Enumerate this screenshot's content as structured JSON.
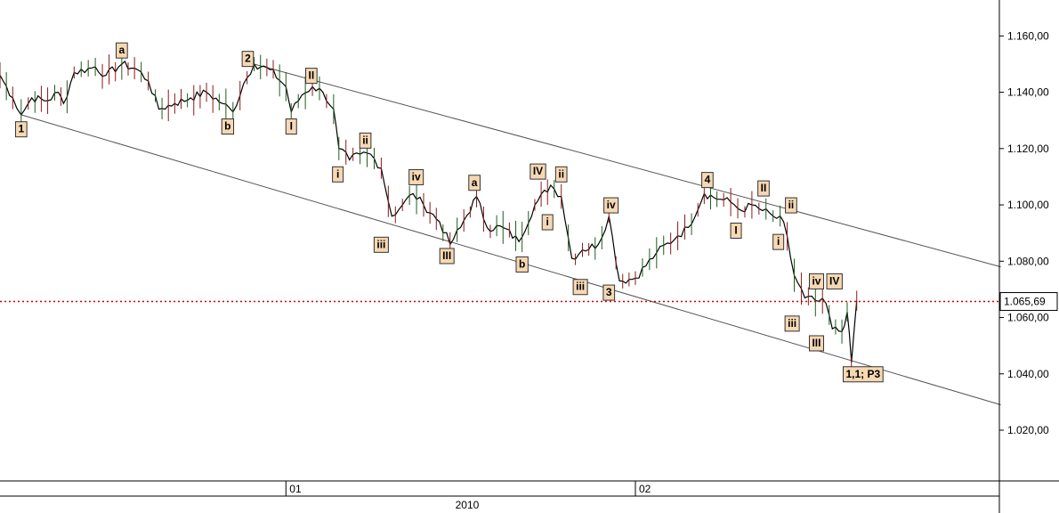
{
  "chart_data": {
    "type": "line",
    "y_axis": {
      "ylim": [
        1.0,
        1.17
      ],
      "ticks": [
        {
          "value": 1.16,
          "label": "1.160,00"
        },
        {
          "value": 1.14,
          "label": "1.140,00"
        },
        {
          "value": 1.12,
          "label": "1.120,00"
        },
        {
          "value": 1.1,
          "label": "1.100,00"
        },
        {
          "value": 1.08,
          "label": "1.080,00"
        },
        {
          "value": 1.06,
          "label": "1.060,00"
        },
        {
          "value": 1.04,
          "label": "1.040,00"
        },
        {
          "value": 1.02,
          "label": "1.020,00"
        }
      ],
      "position": "right"
    },
    "x_axis": {
      "xlim": [
        0,
        100
      ],
      "ticks": [
        {
          "x": 27,
          "label": "01"
        },
        {
          "x": 60,
          "label": "02"
        }
      ],
      "year_label": {
        "x": 44,
        "label": "2010"
      }
    },
    "last_price": {
      "value": 1.06569,
      "label": "1.065,69",
      "color": "#cc0000"
    },
    "trend_channel": [
      {
        "x1": 2,
        "y1": 1.132,
        "x2": 94.5,
        "y2": 1.029
      },
      {
        "x1": 24,
        "y1": 1.15,
        "x2": 94.5,
        "y2": 1.078
      }
    ],
    "series": [
      {
        "line_color": "#000000",
        "points": [
          [
            0,
            1.146
          ],
          [
            1.2,
            1.138
          ],
          [
            2,
            1.132
          ],
          [
            3,
            1.138
          ],
          [
            4.5,
            1.137
          ],
          [
            5.5,
            1.14
          ],
          [
            6,
            1.136
          ],
          [
            7,
            1.147
          ],
          [
            9,
            1.149
          ],
          [
            10,
            1.146
          ],
          [
            11.5,
            1.15
          ],
          [
            13,
            1.148
          ],
          [
            14,
            1.144
          ],
          [
            15,
            1.134
          ],
          [
            16.5,
            1.136
          ],
          [
            18,
            1.138
          ],
          [
            19.5,
            1.14
          ],
          [
            21,
            1.136
          ],
          [
            22,
            1.133
          ],
          [
            23,
            1.143
          ],
          [
            24,
            1.15
          ],
          [
            25.5,
            1.148
          ],
          [
            27,
            1.142
          ],
          [
            27.5,
            1.133
          ],
          [
            28.5,
            1.139
          ],
          [
            29.5,
            1.142
          ],
          [
            30.5,
            1.14
          ],
          [
            31.5,
            1.134
          ],
          [
            32,
            1.12
          ],
          [
            33,
            1.116
          ],
          [
            34,
            1.118
          ],
          [
            35,
            1.118
          ],
          [
            36,
            1.113
          ],
          [
            37,
            1.096
          ],
          [
            38,
            1.1
          ],
          [
            39,
            1.104
          ],
          [
            40,
            1.1
          ],
          [
            41.5,
            1.094
          ],
          [
            42.5,
            1.086
          ],
          [
            43.5,
            1.092
          ],
          [
            45,
            1.103
          ],
          [
            46,
            1.092
          ],
          [
            47.5,
            1.092
          ],
          [
            49,
            1.087
          ],
          [
            50.5,
            1.1
          ],
          [
            52,
            1.107
          ],
          [
            53,
            1.103
          ],
          [
            54,
            1.081
          ],
          [
            55,
            1.084
          ],
          [
            56.5,
            1.086
          ],
          [
            57.5,
            1.096
          ],
          [
            58.5,
            1.073
          ],
          [
            60,
            1.074
          ],
          [
            62,
            1.083
          ],
          [
            64,
            1.089
          ],
          [
            65,
            1.092
          ],
          [
            66.5,
            1.104
          ],
          [
            68,
            1.102
          ],
          [
            69,
            1.101
          ],
          [
            70,
            1.098
          ],
          [
            71,
            1.1
          ],
          [
            72,
            1.098
          ],
          [
            73,
            1.096
          ],
          [
            74,
            1.094
          ],
          [
            75,
            1.075
          ],
          [
            76,
            1.067
          ],
          [
            77,
            1.066
          ],
          [
            78,
            1.065
          ],
          [
            78.6,
            1.056
          ],
          [
            79.5,
            1.055
          ],
          [
            80,
            1.062
          ],
          [
            80.4,
            1.044
          ],
          [
            80.9,
            1.066
          ]
        ]
      }
    ],
    "wave_labels": [
      {
        "text": "1",
        "x": 2,
        "y": 1.127
      },
      {
        "text": "a",
        "x": 11.5,
        "y": 1.155
      },
      {
        "text": "b",
        "x": 21.5,
        "y": 1.128
      },
      {
        "text": "2",
        "x": 23.4,
        "y": 1.152
      },
      {
        "text": "I",
        "x": 27.5,
        "y": 1.128
      },
      {
        "text": "II",
        "x": 29.4,
        "y": 1.146
      },
      {
        "text": "i",
        "x": 31.9,
        "y": 1.111
      },
      {
        "text": "ii",
        "x": 34.5,
        "y": 1.123
      },
      {
        "text": "iii",
        "x": 36,
        "y": 1.086
      },
      {
        "text": "iv",
        "x": 39.3,
        "y": 1.11
      },
      {
        "text": "III",
        "x": 42.2,
        "y": 1.082
      },
      {
        "text": "a",
        "x": 44.8,
        "y": 1.108
      },
      {
        "text": "b",
        "x": 49.3,
        "y": 1.079
      },
      {
        "text": "IV",
        "x": 50.8,
        "y": 1.112
      },
      {
        "text": "ii",
        "x": 53,
        "y": 1.111
      },
      {
        "text": "i",
        "x": 51.7,
        "y": 1.094
      },
      {
        "text": "iii",
        "x": 54.8,
        "y": 1.071
      },
      {
        "text": "iv",
        "x": 57.7,
        "y": 1.1
      },
      {
        "text": "3",
        "x": 57.5,
        "y": 1.069
      },
      {
        "text": "4",
        "x": 66.8,
        "y": 1.109
      },
      {
        "text": "I",
        "x": 69.5,
        "y": 1.091
      },
      {
        "text": "II",
        "x": 72.1,
        "y": 1.106
      },
      {
        "text": "ii",
        "x": 74.7,
        "y": 1.1
      },
      {
        "text": "i",
        "x": 73.5,
        "y": 1.087
      },
      {
        "text": "iv",
        "x": 77.1,
        "y": 1.073
      },
      {
        "text": "IV",
        "x": 78.8,
        "y": 1.073
      },
      {
        "text": "iii",
        "x": 74.8,
        "y": 1.058
      },
      {
        "text": "III",
        "x": 77.1,
        "y": 1.051
      },
      {
        "text": "1,1; P3",
        "x": 81.5,
        "y": 1.04
      }
    ]
  }
}
